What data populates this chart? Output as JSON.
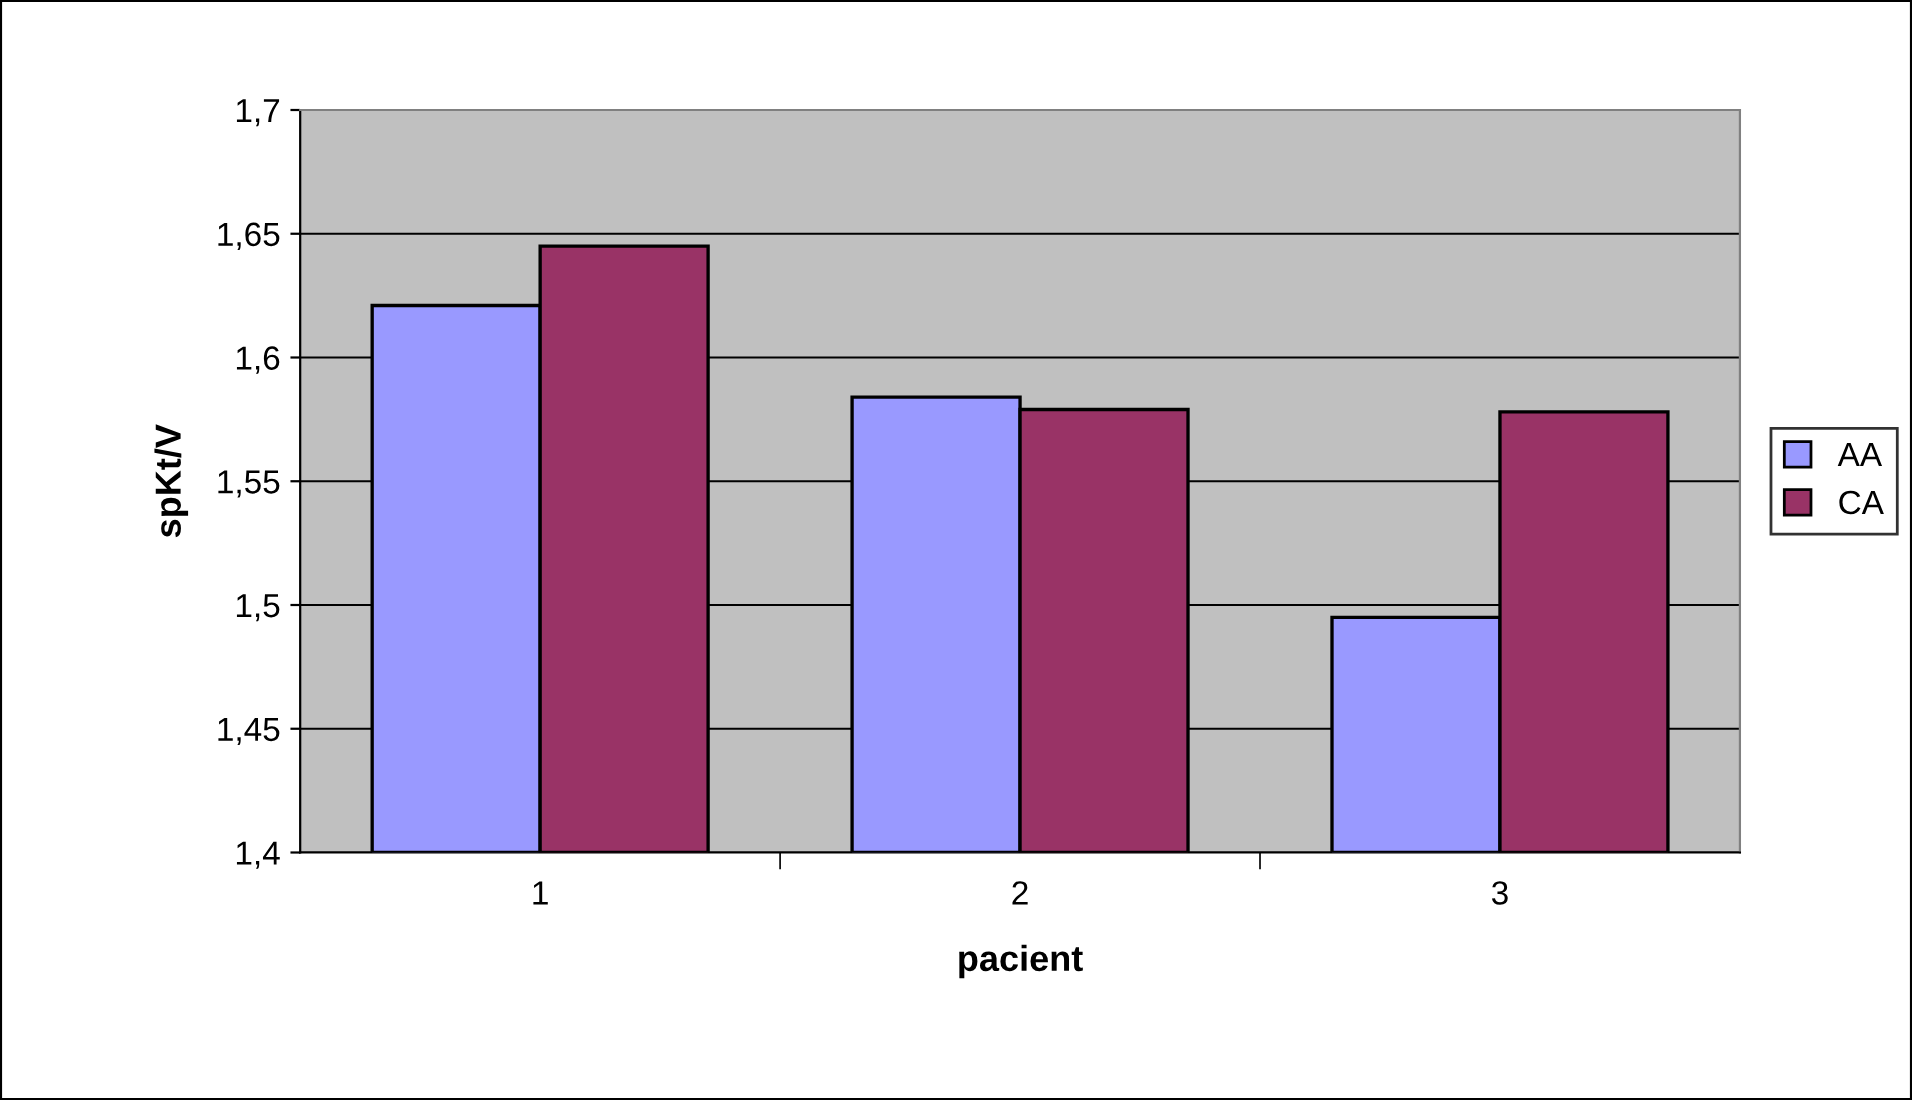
{
  "chart_data": {
    "type": "bar",
    "xlabel": "pacient",
    "ylabel": "spKt/V",
    "categories": [
      "1",
      "2",
      "3"
    ],
    "series": [
      {
        "name": "AA",
        "color": "#9999ff",
        "values": [
          1.621,
          1.584,
          1.495
        ]
      },
      {
        "name": "CA",
        "color": "#993366",
        "values": [
          1.645,
          1.579,
          1.578
        ]
      }
    ],
    "ylim": [
      1.4,
      1.7
    ],
    "yticks": [
      {
        "value": 1.4,
        "label": "1,4"
      },
      {
        "value": 1.45,
        "label": "1,45"
      },
      {
        "value": 1.5,
        "label": "1,5"
      },
      {
        "value": 1.55,
        "label": "1,55"
      },
      {
        "value": 1.6,
        "label": "1,6"
      },
      {
        "value": 1.65,
        "label": "1,65"
      },
      {
        "value": 1.7,
        "label": "1,7"
      }
    ],
    "grid": "y",
    "legend": "right"
  }
}
